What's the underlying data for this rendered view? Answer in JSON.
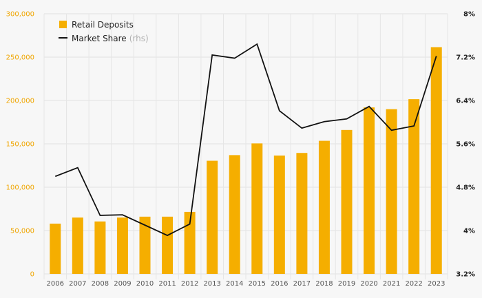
{
  "chart_data": {
    "type": "bar",
    "categories": [
      "2006",
      "2007",
      "2008",
      "2009",
      "2010",
      "2011",
      "2012",
      "2013",
      "2014",
      "2015",
      "2016",
      "2017",
      "2018",
      "2019",
      "2020",
      "2021",
      "2022",
      "2023"
    ],
    "series": [
      {
        "name": "Retail Deposits",
        "type": "bar",
        "axis": "left",
        "color": "#f5ae00",
        "values": [
          58000,
          65000,
          60500,
          65000,
          66000,
          66000,
          71500,
          130500,
          137000,
          150500,
          136500,
          139500,
          153500,
          166000,
          192000,
          190000,
          201500,
          261500
        ]
      },
      {
        "name": "Market Share",
        "name_suffix": "(rhs)",
        "type": "line",
        "axis": "right",
        "color": "#111111",
        "values": [
          5.0,
          5.16,
          4.28,
          4.29,
          4.1,
          3.91,
          4.12,
          7.24,
          7.18,
          7.44,
          6.21,
          5.89,
          6.01,
          6.06,
          6.29,
          5.85,
          5.93,
          7.22
        ]
      }
    ],
    "left_axis": {
      "ylim": [
        0,
        300000
      ],
      "ticks": [
        0,
        50000,
        100000,
        150000,
        200000,
        250000,
        300000
      ],
      "tick_labels": [
        "0",
        "50,000",
        "100,000",
        "150,000",
        "200,000",
        "250,000",
        "300,000"
      ],
      "color": "#f0a500"
    },
    "right_axis": {
      "ylim": [
        3.2,
        8.0
      ],
      "ticks": [
        3.2,
        4.0,
        4.8,
        5.6,
        6.4,
        7.2,
        8.0
      ],
      "tick_labels": [
        "3.2%",
        "4%",
        "4.8%",
        "5.6%",
        "6.4%",
        "7.2%",
        "8%"
      ],
      "color": "#222222"
    },
    "grid": true,
    "legend_position": "top-left",
    "title": "",
    "xlabel": "",
    "ylabel": ""
  }
}
